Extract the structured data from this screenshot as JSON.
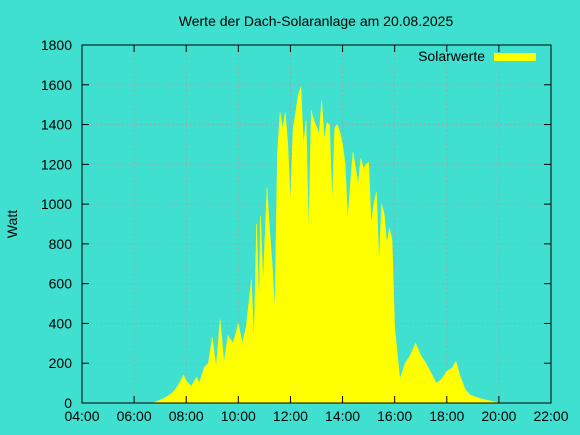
{
  "chart_data": {
    "type": "area",
    "title": "Werte der Dach-Solaranlage am 20.08.2025",
    "xlabel": "",
    "ylabel": "Watt",
    "x_unit": "time of day (hours)",
    "xlim": [
      4,
      22
    ],
    "ylim": [
      0,
      1800
    ],
    "grid": true,
    "legend_position": "top-right",
    "x_tick_labels": [
      "04:00",
      "06:00",
      "08:00",
      "10:00",
      "12:00",
      "14:00",
      "16:00",
      "18:00",
      "20:00",
      "22:00"
    ],
    "y_tick_labels": [
      "0",
      "200",
      "400",
      "600",
      "800",
      "1000",
      "1200",
      "1400",
      "1600",
      "1800"
    ],
    "colors": {
      "background": "#40e0d0",
      "series": "#ffff00",
      "grid": "#a0a0a0",
      "axis": "#000000"
    },
    "series": [
      {
        "name": "Solarwerte",
        "points": [
          [
            6.7,
            0
          ],
          [
            6.9,
            10
          ],
          [
            7.1,
            20
          ],
          [
            7.3,
            35
          ],
          [
            7.5,
            55
          ],
          [
            7.7,
            90
          ],
          [
            7.9,
            140
          ],
          [
            8.0,
            110
          ],
          [
            8.2,
            85
          ],
          [
            8.4,
            130
          ],
          [
            8.5,
            100
          ],
          [
            8.7,
            180
          ],
          [
            8.85,
            200
          ],
          [
            9.0,
            330
          ],
          [
            9.15,
            180
          ],
          [
            9.3,
            420
          ],
          [
            9.45,
            200
          ],
          [
            9.6,
            340
          ],
          [
            9.8,
            300
          ],
          [
            10.0,
            400
          ],
          [
            10.15,
            300
          ],
          [
            10.3,
            380
          ],
          [
            10.5,
            620
          ],
          [
            10.6,
            300
          ],
          [
            10.7,
            900
          ],
          [
            10.8,
            480
          ],
          [
            10.85,
            940
          ],
          [
            10.95,
            600
          ],
          [
            11.1,
            1080
          ],
          [
            11.2,
            870
          ],
          [
            11.3,
            700
          ],
          [
            11.4,
            460
          ],
          [
            11.5,
            1250
          ],
          [
            11.6,
            1460
          ],
          [
            11.7,
            1380
          ],
          [
            11.8,
            1460
          ],
          [
            11.9,
            1300
          ],
          [
            12.0,
            1000
          ],
          [
            12.1,
            1380
          ],
          [
            12.2,
            1460
          ],
          [
            12.3,
            1550
          ],
          [
            12.4,
            1590
          ],
          [
            12.5,
            1300
          ],
          [
            12.6,
            1420
          ],
          [
            12.7,
            850
          ],
          [
            12.8,
            1470
          ],
          [
            12.9,
            1420
          ],
          [
            13.0,
            1390
          ],
          [
            13.1,
            1350
          ],
          [
            13.2,
            1520
          ],
          [
            13.3,
            1320
          ],
          [
            13.4,
            1410
          ],
          [
            13.5,
            1400
          ],
          [
            13.6,
            1000
          ],
          [
            13.7,
            1385
          ],
          [
            13.8,
            1400
          ],
          [
            13.9,
            1360
          ],
          [
            14.0,
            1300
          ],
          [
            14.1,
            1200
          ],
          [
            14.2,
            920
          ],
          [
            14.3,
            1100
          ],
          [
            14.4,
            1260
          ],
          [
            14.5,
            1180
          ],
          [
            14.6,
            1100
          ],
          [
            14.7,
            1230
          ],
          [
            14.8,
            1180
          ],
          [
            14.9,
            1200
          ],
          [
            15.0,
            1210
          ],
          [
            15.1,
            900
          ],
          [
            15.2,
            1000
          ],
          [
            15.3,
            1060
          ],
          [
            15.4,
            700
          ],
          [
            15.5,
            1000
          ],
          [
            15.6,
            950
          ],
          [
            15.7,
            800
          ],
          [
            15.8,
            880
          ],
          [
            15.9,
            820
          ],
          [
            16.0,
            380
          ],
          [
            16.2,
            120
          ],
          [
            16.4,
            200
          ],
          [
            16.6,
            240
          ],
          [
            16.8,
            300
          ],
          [
            17.0,
            240
          ],
          [
            17.2,
            200
          ],
          [
            17.4,
            150
          ],
          [
            17.6,
            100
          ],
          [
            17.8,
            120
          ],
          [
            18.0,
            160
          ],
          [
            18.2,
            175
          ],
          [
            18.35,
            210
          ],
          [
            18.5,
            140
          ],
          [
            18.7,
            70
          ],
          [
            18.9,
            40
          ],
          [
            19.1,
            30
          ],
          [
            19.3,
            22
          ],
          [
            19.5,
            15
          ],
          [
            19.7,
            10
          ],
          [
            19.9,
            5
          ],
          [
            20.1,
            0
          ]
        ]
      }
    ]
  }
}
